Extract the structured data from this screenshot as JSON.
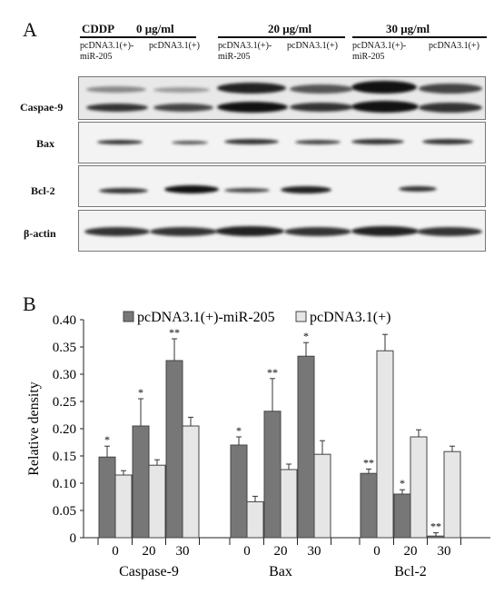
{
  "panel_a": {
    "letter": "A",
    "treatment_label": "CDDP",
    "concentrations": [
      "0 μg/ml",
      "20 μg/ml",
      "30 μg/ml"
    ],
    "lanes": [
      {
        "line1": "pcDNA3.1(+)-",
        "line2": "miR-205"
      },
      {
        "line1": "pcDNA3.1(+)",
        "line2": ""
      },
      {
        "line1": "pcDNA3.1(+)-",
        "line2": "miR-205"
      },
      {
        "line1": "pcDNA3.1(+)",
        "line2": ""
      },
      {
        "line1": "pcDNA3.1(+)-",
        "line2": "miR-205"
      },
      {
        "line1": "pcDNA3.1(+)",
        "line2": ""
      }
    ],
    "row_labels": [
      "Caspae-9",
      "Bax",
      "Bcl-2",
      "β-actin"
    ]
  },
  "panel_b": {
    "letter": "B",
    "chart_data": {
      "type": "bar",
      "ylabel": "Relative density",
      "ylim": [
        0,
        0.4
      ],
      "yticks": [
        "0",
        "0.05",
        "0.10",
        "0.15",
        "0.20",
        "0.25",
        "0.30",
        "0.35",
        "0.40"
      ],
      "groups": [
        "Caspase-9",
        "Bax",
        "Bcl-2"
      ],
      "categories": [
        "0",
        "20",
        "30"
      ],
      "series": [
        {
          "name": "pcDNA3.1(+)-miR-205",
          "color": "#777777",
          "values": [
            [
              0.148,
              0.205,
              0.325
            ],
            [
              0.17,
              0.232,
              0.333
            ],
            [
              0.118,
              0.08,
              0.003
            ]
          ],
          "errors": [
            [
              0.02,
              0.05,
              0.04
            ],
            [
              0.015,
              0.06,
              0.025
            ],
            [
              0.008,
              0.008,
              0.006
            ]
          ]
        },
        {
          "name": "pcDNA3.1(+)",
          "color": "#e6e6e6",
          "values": [
            [
              0.115,
              0.133,
              0.205
            ],
            [
              0.066,
              0.125,
              0.153
            ],
            [
              0.343,
              0.185,
              0.158
            ]
          ],
          "errors": [
            [
              0.008,
              0.01,
              0.016
            ],
            [
              0.01,
              0.01,
              0.025
            ],
            [
              0.03,
              0.013,
              0.01
            ]
          ]
        }
      ],
      "significance": [
        [
          "*",
          "*",
          "**"
        ],
        [
          "*",
          "**",
          "*"
        ],
        [
          "**",
          "*",
          "**"
        ]
      ],
      "legend_position": "top"
    }
  }
}
